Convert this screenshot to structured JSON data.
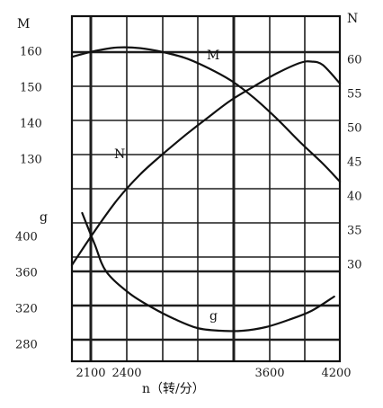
{
  "chart_data": {
    "type": "line",
    "xlabel": "n（转/分）",
    "x_ticks": [
      "2100",
      "2400",
      "3600",
      "4200"
    ],
    "xlim": [
      1900,
      4250
    ],
    "axes": {
      "M": {
        "label": "M",
        "side": "left",
        "ticks": [
          130,
          140,
          150,
          160
        ]
      },
      "g": {
        "label": "g",
        "side": "left",
        "ticks": [
          280,
          320,
          360,
          400
        ]
      },
      "N": {
        "label": "N",
        "side": "right",
        "ticks": [
          30,
          35,
          40,
          45,
          50,
          55,
          60
        ]
      }
    },
    "series": [
      {
        "name": "M",
        "axis": "M",
        "x": [
          1900,
          2100,
          2300,
          2500,
          2700,
          2900,
          3100,
          3300,
          3500,
          3700,
          3900,
          4100,
          4250
        ],
        "y": [
          158.7,
          160.3,
          161.3,
          161.1,
          160.0,
          158.3,
          155.5,
          152.0,
          147.2,
          141.4,
          135.0,
          129.0,
          124.0
        ]
      },
      {
        "name": "N",
        "axis": "N",
        "x": [
          1900,
          2100,
          2300,
          2500,
          2700,
          2900,
          3100,
          3300,
          3500,
          3700,
          3900,
          4000,
          4100,
          4250
        ],
        "y": [
          30.0,
          35.0,
          39.6,
          43.3,
          46.3,
          49.1,
          51.7,
          54.2,
          56.2,
          58.1,
          59.6,
          59.8,
          59.3,
          56.6
        ]
      },
      {
        "name": "g",
        "axis": "g",
        "x": [
          1990,
          2100,
          2200,
          2400,
          2600,
          2800,
          3000,
          3200,
          3400,
          3600,
          3800,
          4000,
          4200
        ],
        "y": [
          427,
          392,
          362,
          338,
          322,
          309,
          299,
          296,
          296,
          300,
          308,
          318,
          334
        ]
      }
    ],
    "curve_labels": [
      "M",
      "N",
      "g"
    ]
  }
}
